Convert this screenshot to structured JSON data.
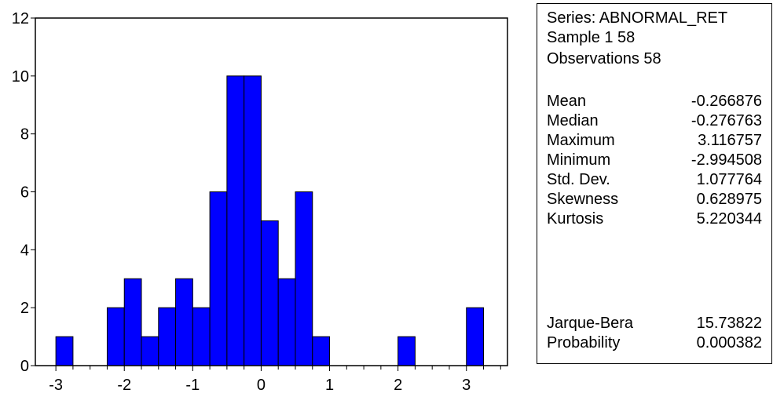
{
  "chart_data": {
    "type": "bar",
    "subtype": "histogram",
    "bin_width": 0.25,
    "bins": [
      {
        "start": -3.0,
        "end": -2.75,
        "count": 1
      },
      {
        "start": -2.75,
        "end": -2.5,
        "count": 0
      },
      {
        "start": -2.5,
        "end": -2.25,
        "count": 0
      },
      {
        "start": -2.25,
        "end": -2.0,
        "count": 2
      },
      {
        "start": -2.0,
        "end": -1.75,
        "count": 3
      },
      {
        "start": -1.75,
        "end": -1.5,
        "count": 1
      },
      {
        "start": -1.5,
        "end": -1.25,
        "count": 2
      },
      {
        "start": -1.25,
        "end": -1.0,
        "count": 3
      },
      {
        "start": -1.0,
        "end": -0.75,
        "count": 2
      },
      {
        "start": -0.75,
        "end": -0.5,
        "count": 6
      },
      {
        "start": -0.5,
        "end": -0.25,
        "count": 10
      },
      {
        "start": -0.25,
        "end": 0.0,
        "count": 10
      },
      {
        "start": 0.0,
        "end": 0.25,
        "count": 5
      },
      {
        "start": 0.25,
        "end": 0.5,
        "count": 3
      },
      {
        "start": 0.5,
        "end": 0.75,
        "count": 6
      },
      {
        "start": 0.75,
        "end": 1.0,
        "count": 1
      },
      {
        "start": 1.0,
        "end": 1.25,
        "count": 0
      },
      {
        "start": 1.25,
        "end": 1.5,
        "count": 0
      },
      {
        "start": 1.5,
        "end": 1.75,
        "count": 0
      },
      {
        "start": 1.75,
        "end": 2.0,
        "count": 0
      },
      {
        "start": 2.0,
        "end": 2.25,
        "count": 1
      },
      {
        "start": 2.25,
        "end": 2.5,
        "count": 0
      },
      {
        "start": 2.5,
        "end": 2.75,
        "count": 0
      },
      {
        "start": 2.75,
        "end": 3.0,
        "count": 0
      },
      {
        "start": 3.0,
        "end": 3.25,
        "count": 2
      }
    ],
    "xlim": [
      -3.3,
      3.6
    ],
    "ylim": [
      0,
      12
    ],
    "xticks": [
      -3,
      -2,
      -1,
      0,
      1,
      2,
      3
    ],
    "yticks": [
      0,
      2,
      4,
      6,
      8,
      10,
      12
    ],
    "title": "",
    "xlabel": "",
    "ylabel": "",
    "grid": false,
    "colors": {
      "bar_fill": "#0000ff",
      "bar_edge": "#000000",
      "axis": "#000000"
    }
  },
  "stats": {
    "header": [
      "Series: ABNORMAL_RET",
      "Sample 1 58",
      "Observations 58"
    ],
    "descriptive": [
      {
        "label": "Mean",
        "value": "-0.266876"
      },
      {
        "label": "Median",
        "value": "-0.276763"
      },
      {
        "label": "Maximum",
        "value": "3.116757"
      },
      {
        "label": "Minimum",
        "value": "-2.994508"
      },
      {
        "label": "Std. Dev.",
        "value": "1.077764"
      },
      {
        "label": "Skewness",
        "value": "0.628975"
      },
      {
        "label": "Kurtosis",
        "value": "5.220344"
      }
    ],
    "tests": [
      {
        "label": "Jarque-Bera",
        "value": "15.73822"
      },
      {
        "label": "Probability",
        "value": "0.000382"
      }
    ]
  }
}
